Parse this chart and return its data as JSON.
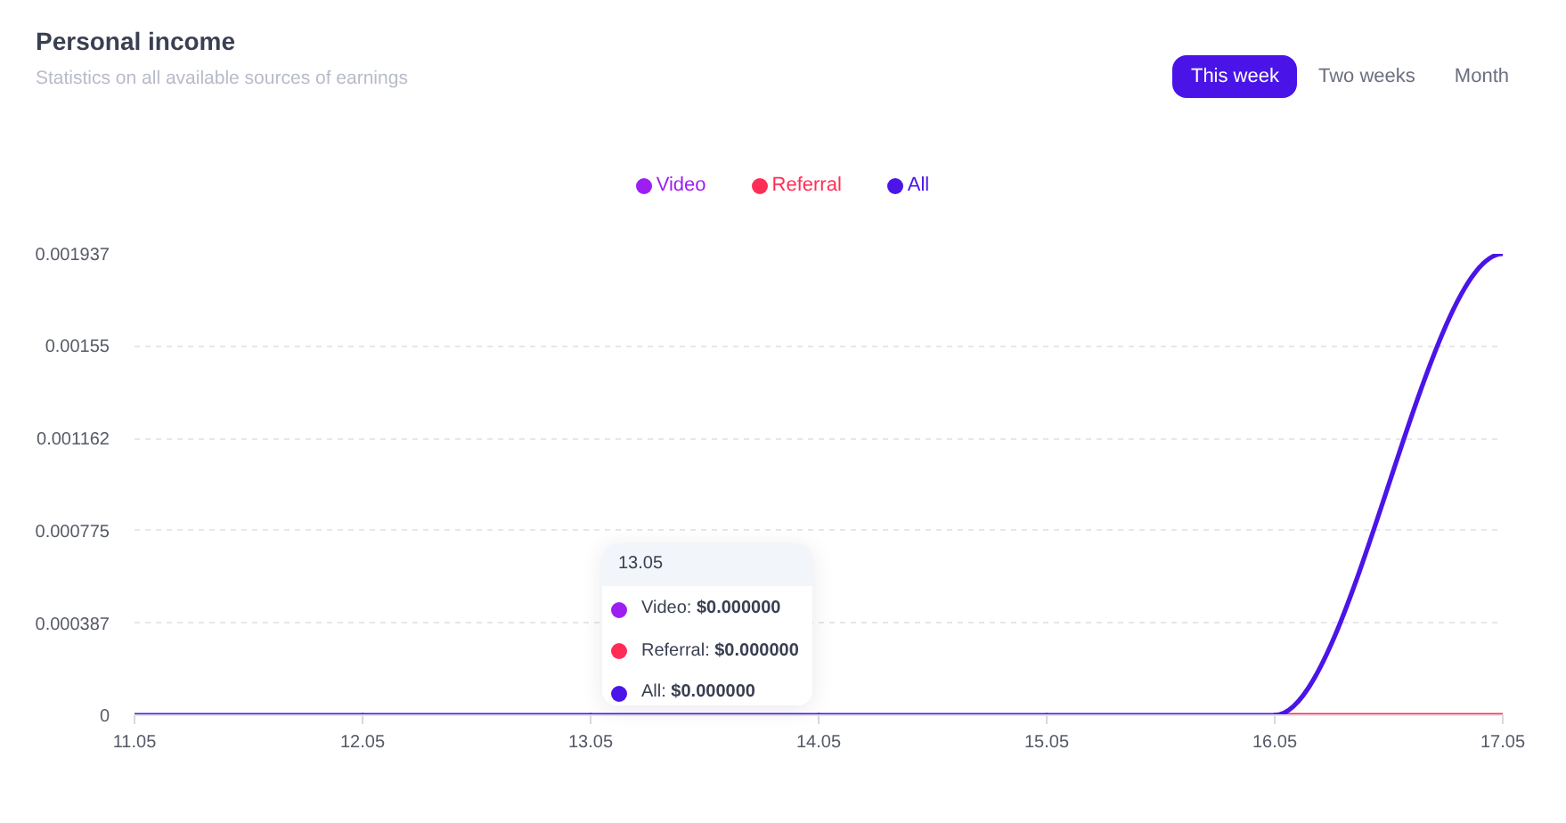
{
  "chart_data": {
    "type": "line",
    "title": "Personal income",
    "subtitle": "Statistics on all available sources of earnings",
    "categories": [
      "11.05",
      "12.05",
      "13.05",
      "14.05",
      "15.05",
      "16.05",
      "17.05"
    ],
    "series": [
      {
        "name": "Video",
        "color": "#9d1ef2",
        "values": [
          null,
          null,
          null,
          null,
          null,
          null,
          null
        ]
      },
      {
        "name": "Referral",
        "color": "#ff2d55",
        "values": [
          null,
          null,
          null,
          null,
          null,
          0,
          0
        ]
      },
      {
        "name": "All",
        "color": "#4b14e8",
        "values": [
          0,
          0,
          0,
          0,
          0,
          0,
          0.001937
        ]
      }
    ],
    "ylim": [
      0,
      0.001937
    ],
    "yticks": [
      0,
      0.000387,
      0.000775,
      0.001162,
      0.00155,
      0.001937
    ],
    "grid": "y",
    "legend": "top",
    "annotations": [
      "This week",
      "Two weeks",
      "Month",
      "13.05",
      "Video: $0.000000",
      "Referral: $0.000000",
      "All: $0.000000"
    ]
  }
}
